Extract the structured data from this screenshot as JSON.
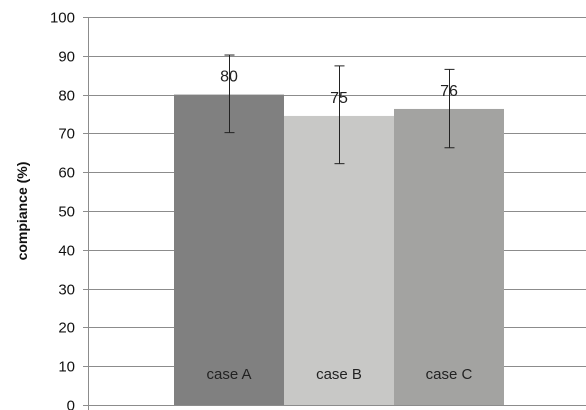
{
  "chart_data": {
    "type": "bar",
    "title": "",
    "xlabel": "",
    "ylabel": "compiance (%)",
    "ylim": [
      0,
      100
    ],
    "yticks": [
      0,
      10,
      20,
      30,
      40,
      50,
      60,
      70,
      80,
      90,
      100
    ],
    "grid": true,
    "legend": "none",
    "categories": [
      "case A",
      "case B",
      "case C"
    ],
    "values": [
      80,
      74.5,
      76.3
    ],
    "data_labels": [
      "80",
      "75",
      "76"
    ],
    "error_upper": [
      90.2,
      87.4,
      86.5
    ],
    "error_lower": [
      70.2,
      62.2,
      66.3
    ],
    "colors": [
      "#808080",
      "#c8c8c6",
      "#a3a3a1"
    ],
    "grid_color": "#8c8c8c",
    "error_bar_color": "#222222"
  }
}
